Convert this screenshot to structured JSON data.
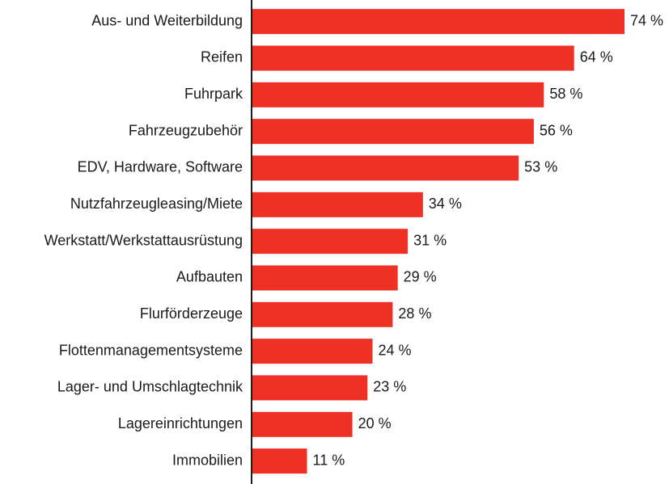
{
  "chart_data": {
    "type": "bar",
    "orientation": "horizontal",
    "color": "#ee3124",
    "categories": [
      "Aus- und Weiterbildung",
      "Reifen",
      "Fuhrpark",
      "Fahrzeugzubehör",
      "EDV, Hardware, Software",
      "Nutzfahrzeugleasing/Miete",
      "Werkstatt/Werkstattausrüstung",
      "Aufbauten",
      "Flurförderzeuge",
      "Flottenmanagementsysteme",
      "Lager- und Umschlagtechnik",
      "Lagereinrichtungen",
      "Immobilien"
    ],
    "values": [
      74,
      64,
      58,
      56,
      53,
      34,
      31,
      29,
      28,
      24,
      23,
      20,
      11
    ],
    "value_labels": [
      "74 %",
      "64 %",
      "58 %",
      "56 %",
      "53 %",
      "34 %",
      "31 %",
      "29 %",
      "28 %",
      "24 %",
      "23 %",
      "20 %",
      "11 %"
    ]
  }
}
